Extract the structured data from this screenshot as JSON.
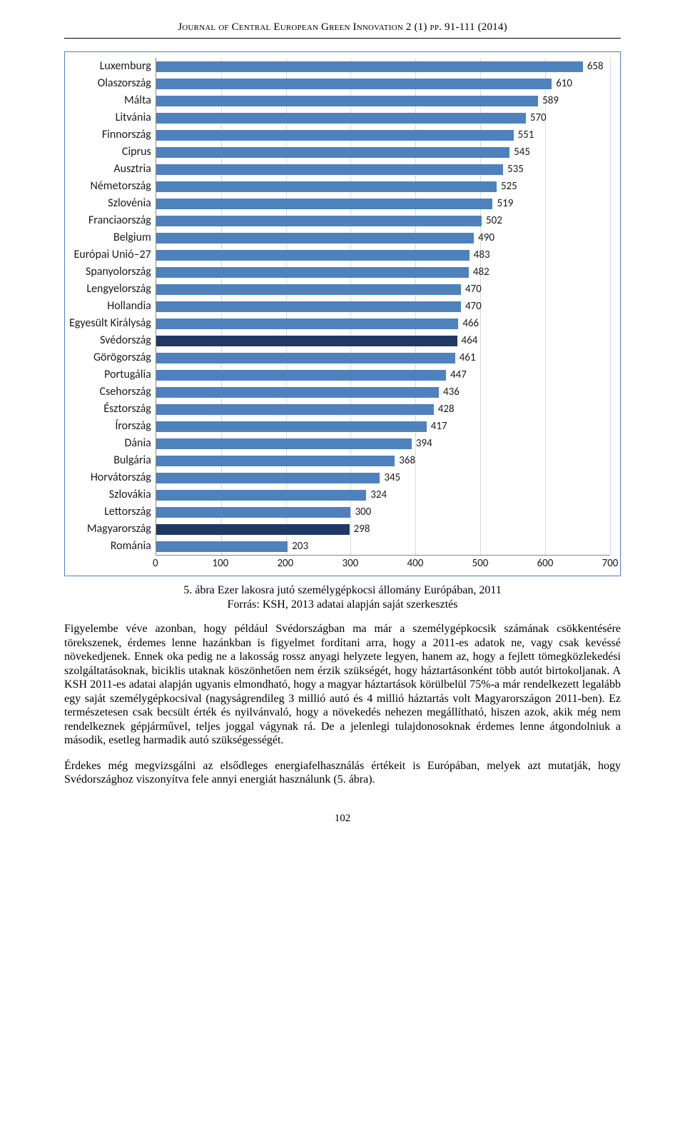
{
  "running_head": "Journal of Central European Green Innovation 2 (1) pp. 91-111 (2014)",
  "chart": {
    "type": "bar",
    "x_max": 700,
    "x_step": 100,
    "bar_color": "#4f81bd",
    "bar_color_highlight": "#1f3864",
    "grid_color": "#d9d9d9",
    "axis_color": "#888888",
    "font": "Calibri",
    "label_fontsize": 16,
    "value_fontsize": 15,
    "ticks": [
      0,
      100,
      200,
      300,
      400,
      500,
      600,
      700
    ],
    "rows": [
      {
        "label": "Luxemburg",
        "value": 658,
        "highlight": false
      },
      {
        "label": "Olaszország",
        "value": 610,
        "highlight": false
      },
      {
        "label": "Málta",
        "value": 589,
        "highlight": false
      },
      {
        "label": "Litvánia",
        "value": 570,
        "highlight": false
      },
      {
        "label": "Finnország",
        "value": 551,
        "highlight": false
      },
      {
        "label": "Ciprus",
        "value": 545,
        "highlight": false
      },
      {
        "label": "Ausztria",
        "value": 535,
        "highlight": false
      },
      {
        "label": "Németország",
        "value": 525,
        "highlight": false
      },
      {
        "label": "Szlovénia",
        "value": 519,
        "highlight": false
      },
      {
        "label": "Franciaország",
        "value": 502,
        "highlight": false
      },
      {
        "label": "Belgium",
        "value": 490,
        "highlight": false
      },
      {
        "label": "Európai Unió–27",
        "value": 483,
        "highlight": false
      },
      {
        "label": "Spanyolország",
        "value": 482,
        "highlight": false
      },
      {
        "label": "Lengyelország",
        "value": 470,
        "highlight": false
      },
      {
        "label": "Hollandia",
        "value": 470,
        "highlight": false
      },
      {
        "label": "Egyesült Királyság",
        "value": 466,
        "highlight": false
      },
      {
        "label": "Svédország",
        "value": 464,
        "highlight": true
      },
      {
        "label": "Görögország",
        "value": 461,
        "highlight": false
      },
      {
        "label": "Portugália",
        "value": 447,
        "highlight": false
      },
      {
        "label": "Csehország",
        "value": 436,
        "highlight": false
      },
      {
        "label": "Észtország",
        "value": 428,
        "highlight": false
      },
      {
        "label": "Írország",
        "value": 417,
        "highlight": false
      },
      {
        "label": "Dánia",
        "value": 394,
        "highlight": false
      },
      {
        "label": "Bulgária",
        "value": 368,
        "highlight": false
      },
      {
        "label": "Horvátország",
        "value": 345,
        "highlight": false
      },
      {
        "label": "Szlovákia",
        "value": 324,
        "highlight": false
      },
      {
        "label": "Lettország",
        "value": 300,
        "highlight": false
      },
      {
        "label": "Magyarország",
        "value": 298,
        "highlight": true
      },
      {
        "label": "Románia",
        "value": 203,
        "highlight": false
      }
    ]
  },
  "caption_title": "5. ábra Ezer lakosra jutó személygépkocsi állomány Európában, 2011",
  "caption_source": "Forrás:  KSH, 2013 adatai alapján saját szerkesztés",
  "paragraph_1": "Figyelembe véve azonban, hogy például Svédországban ma már a személygépkocsik számának csökkentésére törekszenek, érdemes lenne hazánkban is figyelmet fordítani arra, hogy a 2011-es adatok ne, vagy csak kevéssé növekedjenek. Ennek oka pedig ne a lakosság rossz anyagi helyzete legyen, hanem az, hogy a fejlett tömegközlekedési szolgáltatásoknak, biciklis utaknak köszönhetően nem érzik szükségét, hogy háztartásonként több autót birtokoljanak. A KSH 2011-es adatai alapján ugyanis elmondható, hogy a magyar háztartások körülbelül 75%-a már rendelkezett legalább egy saját személygépkocsival (nagyságrendileg 3 millió autó és 4 millió háztartás volt Magyarországon 2011-ben). Ez természetesen csak becsült érték és nyilvánvaló, hogy a növekedés nehezen megállítható, hiszen azok, akik még nem rendelkeznek gépjárművel, teljes joggal vágynak rá. De a jelenlegi tulajdonosoknak érdemes lenne átgondolniuk a második, esetleg harmadik autó szükségességét.",
  "paragraph_2": "Érdekes még megvizsgálni az elsődleges energiafelhasználás értékeit is Európában, melyek azt mutatják, hogy Svédországhoz viszonyítva fele annyi energiát használunk (5. ábra).",
  "page_number": "102"
}
